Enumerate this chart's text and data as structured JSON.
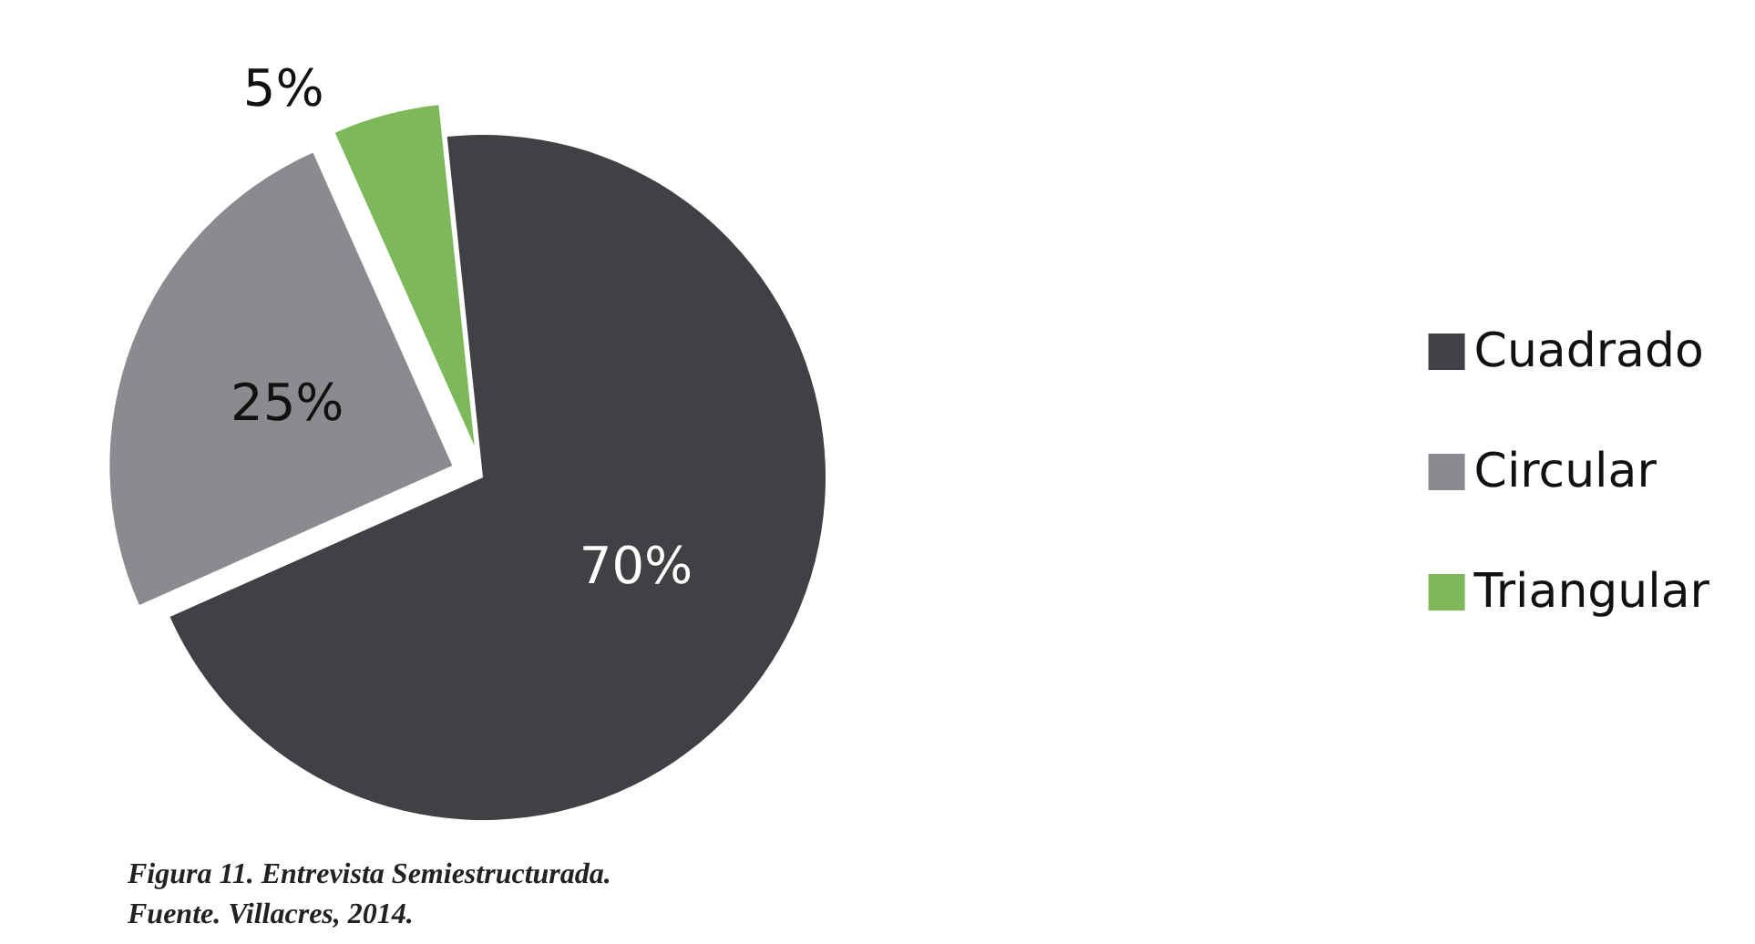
{
  "chart_data": {
    "type": "pie",
    "categories": [
      "Cuadrado",
      "Circular",
      "Triangular"
    ],
    "values": [
      70,
      25,
      5
    ],
    "colors": [
      "#414045",
      "#898b8e",
      "#7db95a"
    ],
    "value_labels": [
      "70%",
      "25%",
      "5%"
    ],
    "legend": "right",
    "annotations": [
      "Figura 11. Entrevista Semiestructurada.",
      "Fuente. Villacres, 2014."
    ]
  }
}
